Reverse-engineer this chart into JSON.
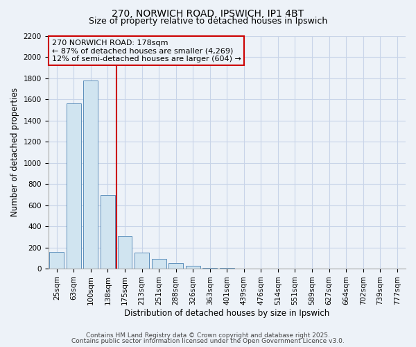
{
  "title_line1": "270, NORWICH ROAD, IPSWICH, IP1 4BT",
  "title_line2": "Size of property relative to detached houses in Ipswich",
  "xlabel": "Distribution of detached houses by size in Ipswich",
  "ylabel": "Number of detached properties",
  "categories": [
    "25sqm",
    "63sqm",
    "100sqm",
    "138sqm",
    "175sqm",
    "213sqm",
    "251sqm",
    "288sqm",
    "326sqm",
    "363sqm",
    "401sqm",
    "439sqm",
    "476sqm",
    "514sqm",
    "551sqm",
    "589sqm",
    "627sqm",
    "664sqm",
    "702sqm",
    "739sqm",
    "777sqm"
  ],
  "values": [
    155,
    1560,
    1780,
    695,
    310,
    150,
    95,
    55,
    30,
    5,
    5,
    0,
    0,
    0,
    0,
    0,
    0,
    0,
    0,
    0,
    0
  ],
  "bar_color": "#d0e4f0",
  "bar_edge_color": "#5b8fbb",
  "vline_x": 3.5,
  "vline_color": "#cc0000",
  "annotation_text": "270 NORWICH ROAD: 178sqm\n← 87% of detached houses are smaller (4,269)\n12% of semi-detached houses are larger (604) →",
  "annotation_box_color": "#cc0000",
  "ylim": [
    0,
    2200
  ],
  "yticks": [
    0,
    200,
    400,
    600,
    800,
    1000,
    1200,
    1400,
    1600,
    1800,
    2000,
    2200
  ],
  "background_color": "#edf2f8",
  "grid_color": "#c8d4e8",
  "footer_line1": "Contains HM Land Registry data © Crown copyright and database right 2025.",
  "footer_line2": "Contains public sector information licensed under the Open Government Licence v3.0.",
  "title_fontsize": 10,
  "subtitle_fontsize": 9,
  "axis_label_fontsize": 8.5,
  "tick_fontsize": 7.5,
  "annotation_fontsize": 8,
  "footer_fontsize": 6.5
}
